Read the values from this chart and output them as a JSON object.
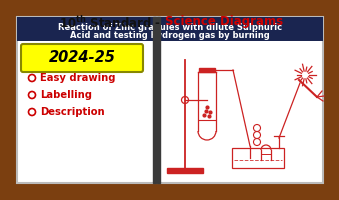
{
  "bg_outer": "#7B3F10",
  "bg_panel": "#ffffff",
  "title_black": "10",
  "title_sup": "th",
  "title_black2": " Standard - ",
  "title_red": "Science Diagrams",
  "title_color_black": "#111111",
  "title_color_red": "#cc0000",
  "subtitle_text1": "Reaction of Zinc granules with dilute Sulphuric",
  "subtitle_text2": "Acid and testing hydrogen gas by burning",
  "subtitle_bg": "#1a2550",
  "subtitle_color": "#ffffff",
  "badge_text": "2024-25",
  "badge_bg": "#ffff00",
  "badge_text_color": "#000000",
  "bullet_color": "#cc0000",
  "bullet_items": [
    "Easy drawing",
    "Labelling",
    "Description"
  ],
  "diagram_color": "#cc2222",
  "divider_color": "#3a3a3a"
}
